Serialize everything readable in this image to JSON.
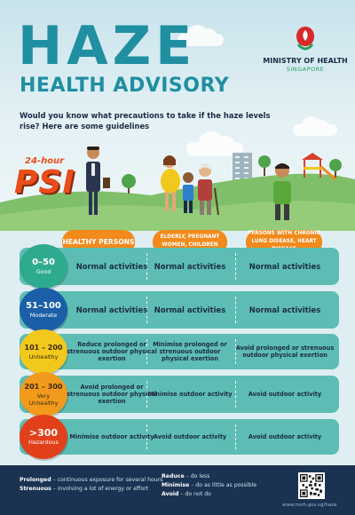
{
  "header": {
    "title": "HAZE",
    "subtitle": "HEALTH ADVISORY",
    "intro": "Would you know what precautions to take if the haze levels rise? Here are some guidelines"
  },
  "ministry": {
    "name": "MINISTRY OF HEALTH",
    "country": "SINGAPORE"
  },
  "psi": {
    "top": "24-hour",
    "big": "PSI"
  },
  "columns": [
    "HEALTHY PERSONS",
    "ELDERLY, PREGNANT WOMEN, CHILDREN",
    "PERSONS WITH CHRONIC LUNG DISEASE, HEART DISEASE"
  ],
  "rows": [
    {
      "range": "0–50",
      "label": "Good",
      "color": "#2eaa8f",
      "cells": [
        "Normal activities",
        "Normal activities",
        "Normal activities"
      ]
    },
    {
      "range": "51–100",
      "label": "Moderate",
      "color": "#1a5fa8",
      "cells": [
        "Normal activities",
        "Normal activities",
        "Normal activities"
      ]
    },
    {
      "range": "101 – 200",
      "label": "Unhealthy",
      "color": "#f2c81c",
      "cells": [
        "Reduce prolonged or strenuous outdoor physical exertion",
        "Minimise prolonged or strenuous outdoor physical exertion",
        "Avoid prolonged or strenuous outdoor physical exertion"
      ]
    },
    {
      "range": "201 – 300",
      "label": "Very Unhealthy",
      "color": "#f29a1c",
      "cells": [
        "Avoid prolonged or strenuous outdoor physical exertion",
        "Minimise outdoor activity",
        "Avoid outdoor activity"
      ]
    },
    {
      "range": ">300",
      "label": "Hazardous",
      "color": "#e2401a",
      "cells": [
        "Minimise outdoor activity",
        "Avoid outdoor activity",
        "Avoid outdoor activity"
      ]
    }
  ],
  "footer": {
    "defs_left": [
      {
        "term": "Prolonged",
        "desc": " – continuous exposure for several hours"
      },
      {
        "term": "Strenuous",
        "desc": " – involving a lot of energy or effort"
      }
    ],
    "defs_right": [
      {
        "term": "Reduce",
        "desc": " – do less"
      },
      {
        "term": "Minimise",
        "desc": " – do as little as possible"
      },
      {
        "term": "Avoid",
        "desc": " – do not do"
      }
    ],
    "url": "www.moh.gov.sg/haze"
  },
  "colors": {
    "title": "#1f8fa1",
    "header_pill": "#f28a1c",
    "row_bg": "#5dbdb4",
    "footer_bg": "#1b3352"
  },
  "icons": [
    "moh-logo-icon",
    "qr-code-icon"
  ]
}
